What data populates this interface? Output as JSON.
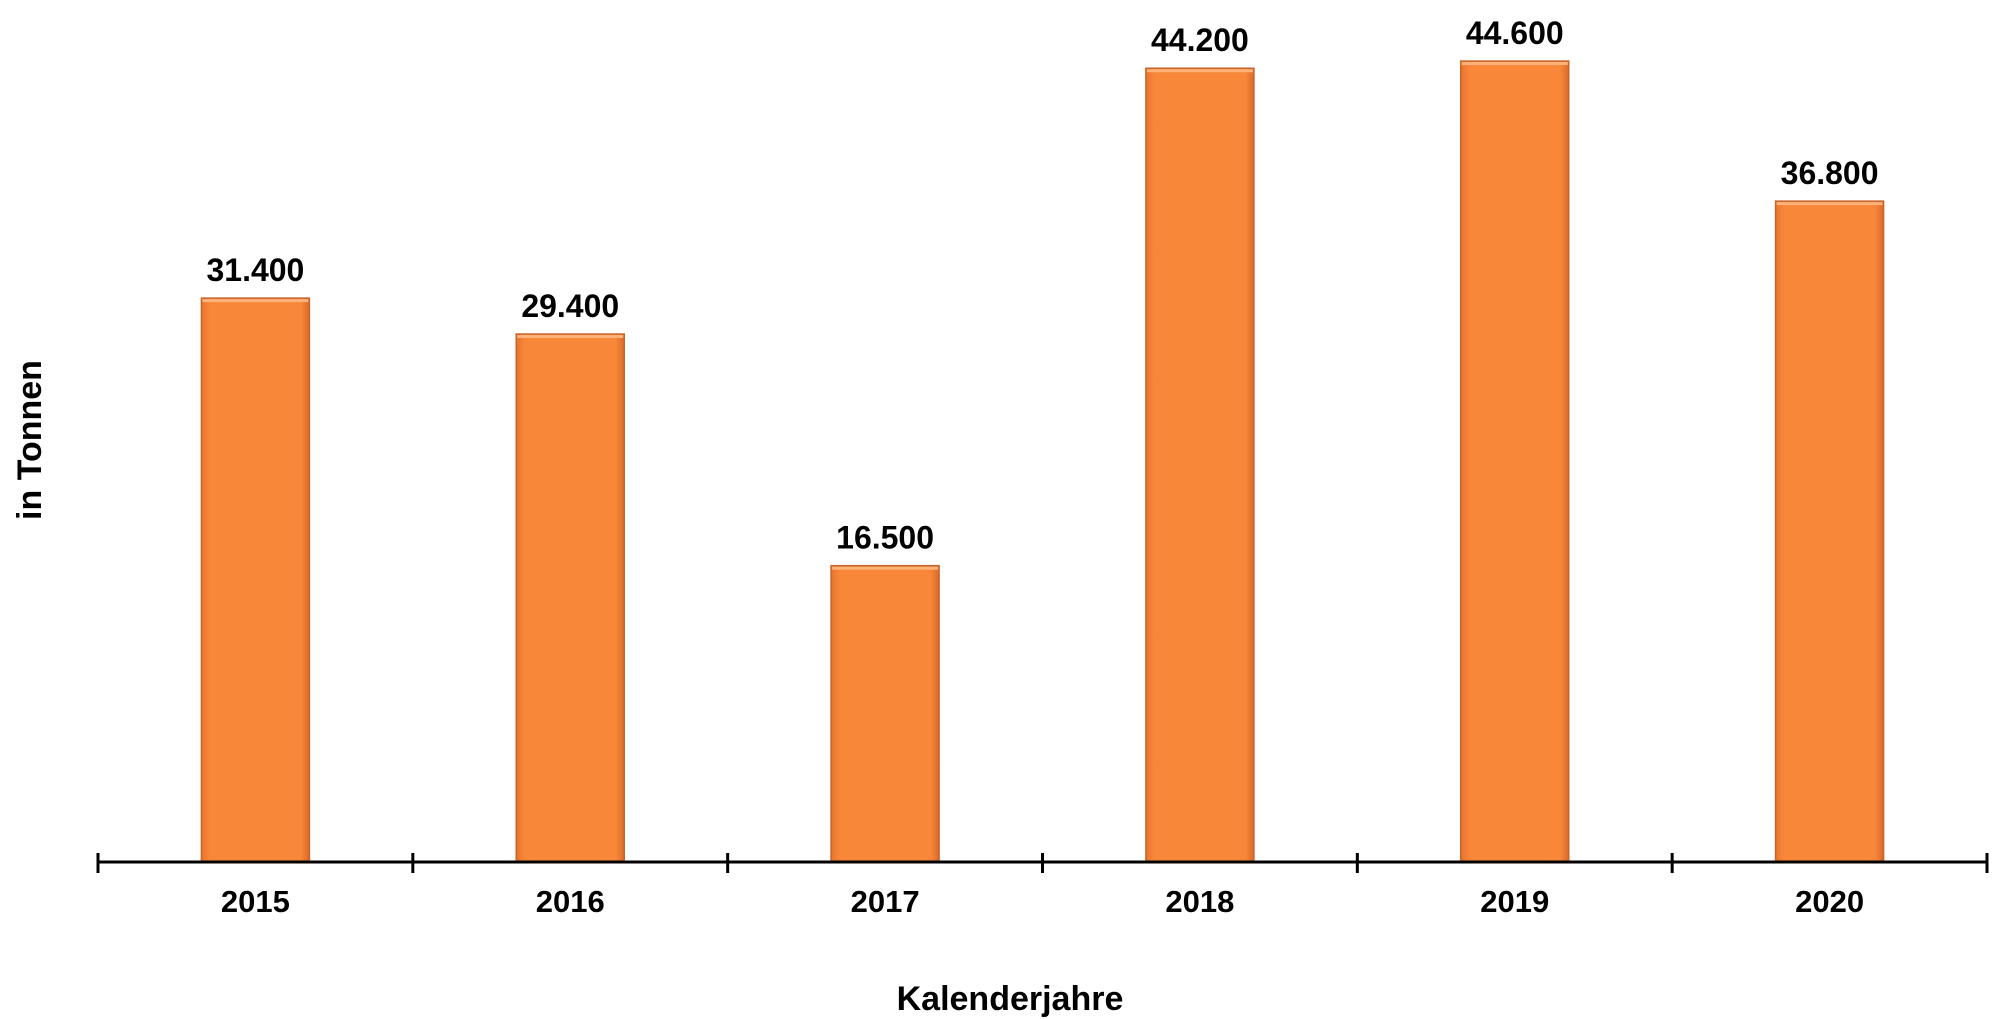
{
  "chart_data": {
    "type": "bar",
    "title": "",
    "xlabel": "Kalenderjahre",
    "ylabel": "in Tonnen",
    "categories": [
      "2015",
      "2016",
      "2017",
      "2018",
      "2019",
      "2020"
    ],
    "values": [
      31400,
      29400,
      16500,
      44200,
      44600,
      36800
    ],
    "data_labels": [
      "31.400",
      "29.400",
      "16.500",
      "44.200",
      "44.600",
      "36.800"
    ],
    "ylim": [
      0,
      48000
    ],
    "grid": false,
    "legend": "none",
    "colors": {
      "bar_fill": "#F9873A",
      "bar_edge": "#C8642A",
      "axis": "#000000"
    }
  }
}
